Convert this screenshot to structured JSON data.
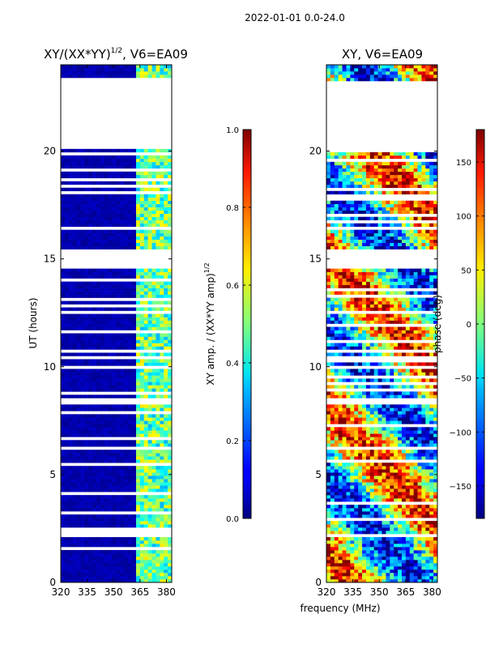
{
  "suptitle": "2022-01-01 0.0-24.0",
  "shared_xlabel": "frequency (MHz)",
  "chart_data": [
    {
      "type": "heatmap",
      "title_main": "XY/(XX*YY)",
      "title_sup": "1/2",
      "title_tail": ", V6=EA09",
      "xlabel": "",
      "ylabel": "UT (hours)",
      "x_ticks": [
        320,
        335,
        350,
        365,
        380
      ],
      "xlim": [
        320,
        383
      ],
      "y_ticks": [
        0,
        5,
        10,
        15,
        20
      ],
      "ylim": [
        0,
        24
      ],
      "data_gaps_hours": [
        [
          20.1,
          23.3
        ],
        [
          14.6,
          15.4
        ],
        [
          8.2,
          8.5
        ],
        [
          10.4,
          10.5
        ]
      ],
      "bright_band_mhz": [
        363,
        382
      ],
      "colorbar": {
        "label_main": "XY amp. / (XX*YY amp)",
        "label_sup": "1/2",
        "range": [
          0.0,
          1.0
        ],
        "ticks": [
          "0.0",
          "0.2",
          "0.4",
          "0.6",
          "0.8",
          "1.0"
        ],
        "colormap": "jet"
      }
    },
    {
      "type": "heatmap",
      "title": "XY, V6=EA09",
      "xlabel": "frequency (MHz)",
      "ylabel": "",
      "x_ticks": [
        320,
        335,
        350,
        365,
        380
      ],
      "xlim": [
        320,
        383
      ],
      "y_ticks": [
        0,
        5,
        10,
        15,
        20
      ],
      "ylim": [
        0,
        24
      ],
      "data_gaps_hours": [
        [
          20.1,
          23.3
        ],
        [
          14.6,
          15.4
        ],
        [
          8.2,
          8.5
        ],
        [
          10.4,
          10.5
        ]
      ],
      "colorbar": {
        "label": "phase (deg)",
        "range": [
          -180,
          180
        ],
        "ticks": [
          "150",
          "100",
          "50",
          "0",
          "−50",
          "−100",
          "−150"
        ],
        "tick_values": [
          150,
          100,
          50,
          0,
          -50,
          -100,
          -150
        ],
        "colormap": "jet"
      }
    }
  ]
}
